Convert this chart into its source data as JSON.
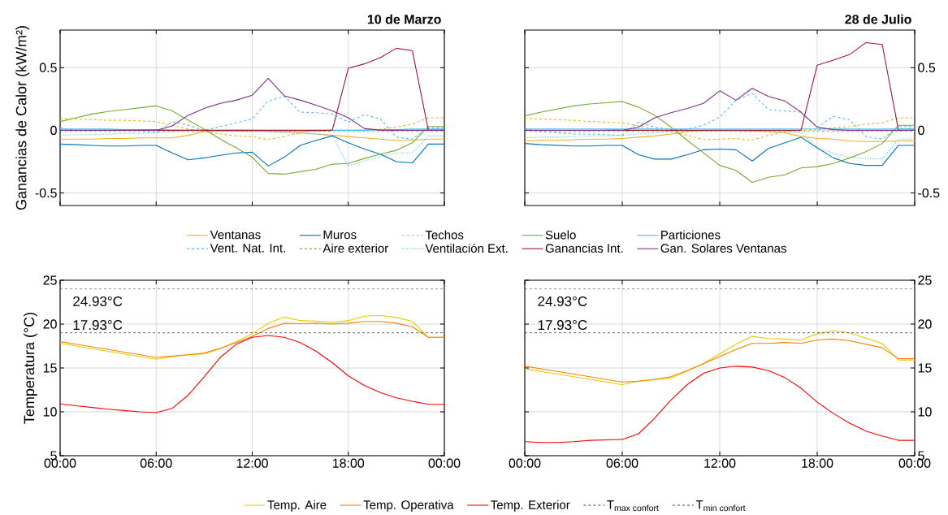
{
  "chart_data": [
    {
      "type": "line",
      "title": "10 de Marzo",
      "ylabel": "Ganancias de Calor (kW/m²)",
      "x": [
        0,
        1,
        2,
        3,
        4,
        5,
        6,
        7,
        8,
        9,
        10,
        11,
        12,
        13,
        14,
        15,
        16,
        17,
        18,
        19,
        20,
        21,
        22,
        23,
        24
      ],
      "xlim": [
        0,
        24
      ],
      "ylim": [
        -0.6,
        0.8
      ],
      "xticks": [
        0,
        6,
        12,
        18,
        24
      ],
      "yticks": [
        -0.5,
        0,
        0.5
      ],
      "grid": true,
      "legend": "bottom",
      "tick_labels": "y",
      "series": [
        {
          "name": "Ventanas",
          "color": "#edb120",
          "line_style": "solid",
          "values": [
            -0.07,
            -0.07,
            -0.07,
            -0.065,
            -0.065,
            -0.06,
            -0.06,
            -0.06,
            -0.04,
            -0.01,
            0,
            0,
            0,
            -0.01,
            -0.01,
            -0.02,
            -0.03,
            -0.04,
            -0.05,
            -0.06,
            -0.07,
            -0.08,
            -0.08,
            -0.07,
            -0.07
          ]
        },
        {
          "name": "Muros",
          "color": "#0072bd",
          "line_style": "solid",
          "values": [
            -0.11,
            -0.115,
            -0.12,
            -0.125,
            -0.125,
            -0.12,
            -0.12,
            -0.18,
            -0.235,
            -0.22,
            -0.2,
            -0.18,
            -0.175,
            -0.285,
            -0.215,
            -0.12,
            -0.08,
            -0.045,
            -0.1,
            -0.15,
            -0.19,
            -0.25,
            -0.26,
            -0.11,
            -0.11
          ]
        },
        {
          "name": "Techos",
          "color": "#edb120",
          "line_style": "dashed",
          "values": [
            0.095,
            0.09,
            0.085,
            0.08,
            0.08,
            0.075,
            0.07,
            0.04,
            0.01,
            -0.01,
            -0.03,
            -0.045,
            -0.05,
            -0.075,
            -0.05,
            -0.02,
            0,
            0,
            0,
            0.005,
            0.01,
            0.025,
            0.05,
            0.1,
            0.1
          ]
        },
        {
          "name": "Suelo",
          "color": "#77ac30",
          "line_style": "solid",
          "values": [
            0.07,
            0.1,
            0.13,
            0.15,
            0.165,
            0.18,
            0.195,
            0.155,
            0.08,
            0.01,
            -0.07,
            -0.14,
            -0.215,
            -0.345,
            -0.35,
            -0.33,
            -0.31,
            -0.27,
            -0.265,
            -0.225,
            -0.19,
            -0.16,
            -0.1,
            0.03,
            0.03
          ]
        },
        {
          "name": "Particiones",
          "color": "#4dbeee",
          "line_style": "solid",
          "values": [
            0.01,
            0.01,
            0.01,
            0.01,
            0.005,
            0.005,
            0.005,
            0,
            0,
            0,
            -0.005,
            -0.005,
            -0.01,
            -0.01,
            -0.01,
            -0.01,
            -0.005,
            0,
            0,
            0,
            0.005,
            0.005,
            0.01,
            0.01,
            0.01
          ]
        },
        {
          "name": "Vent. Nat. Int.",
          "color": "#4dbeee",
          "line_style": "dashed",
          "values": [
            0.02,
            0,
            0,
            0,
            0,
            0,
            -0.02,
            0.07,
            0.04,
            0,
            0.03,
            0.06,
            0.09,
            0.235,
            0.27,
            0.145,
            0.14,
            0.13,
            0.065,
            0.125,
            0.09,
            -0.055,
            -0.07,
            0.02,
            0.02
          ]
        },
        {
          "name": "Aire exterior",
          "color": "#77ac30",
          "line_style": "dashed",
          "values": [
            -0.01,
            -0.01,
            -0.01,
            -0.01,
            -0.01,
            -0.01,
            -0.01,
            -0.01,
            -0.01,
            -0.01,
            -0.005,
            -0.005,
            -0.005,
            -0.005,
            -0.005,
            -0.005,
            -0.005,
            -0.01,
            -0.01,
            -0.01,
            -0.01,
            -0.01,
            -0.01,
            -0.01,
            -0.01
          ]
        },
        {
          "name": "Ventilación Ext.",
          "color": "#4dbeee",
          "line_style": "dotted",
          "values": [
            -0.04,
            -0.035,
            -0.035,
            -0.03,
            -0.025,
            -0.025,
            -0.02,
            -0.01,
            -0.005,
            0,
            0,
            0,
            0,
            -0.01,
            -0.02,
            -0.03,
            -0.03,
            -0.04,
            -0.285,
            -0.245,
            -0.21,
            -0.18,
            -0.18,
            -0.045,
            -0.045
          ]
        },
        {
          "name": "Ganancias Int.",
          "color": "#a2142f",
          "line_style": "solid",
          "values": [
            null,
            null,
            null,
            null,
            null,
            0,
            0,
            0,
            0,
            0,
            0,
            0,
            0,
            0,
            0,
            0,
            0,
            0,
            0.495,
            0.53,
            0.58,
            0.655,
            0.635,
            0,
            0
          ]
        },
        {
          "name": "Gan. Solares Ventanas",
          "color": "#7e2f8e",
          "line_style": "solid",
          "values": [
            0,
            0,
            0,
            0,
            0,
            0,
            0,
            0.035,
            0.12,
            0.175,
            0.215,
            0.24,
            0.28,
            0.415,
            0.275,
            0.24,
            0.2,
            0.155,
            0.1,
            0.015,
            0,
            0,
            0,
            0,
            0
          ]
        }
      ]
    },
    {
      "type": "line",
      "title": "28 de Julio",
      "x": [
        0,
        1,
        2,
        3,
        4,
        5,
        6,
        7,
        8,
        9,
        10,
        11,
        12,
        13,
        14,
        15,
        16,
        17,
        18,
        19,
        20,
        21,
        22,
        23,
        24
      ],
      "xlim": [
        0,
        24
      ],
      "ylim": [
        -0.6,
        0.8
      ],
      "xticks": [
        0,
        6,
        12,
        18,
        24
      ],
      "yticks": [
        -0.5,
        0,
        0.5
      ],
      "grid": true,
      "tick_labels": "y",
      "series": [
        {
          "color": "#edb120",
          "line_style": "solid",
          "values": [
            -0.085,
            -0.08,
            -0.08,
            -0.075,
            -0.07,
            -0.07,
            -0.065,
            -0.055,
            -0.045,
            -0.03,
            -0.01,
            0,
            0,
            0,
            -0.005,
            -0.01,
            -0.02,
            -0.05,
            -0.065,
            -0.07,
            -0.085,
            -0.09,
            -0.09,
            -0.085,
            -0.085
          ]
        },
        {
          "color": "#0072bd",
          "line_style": "solid",
          "values": [
            -0.105,
            -0.115,
            -0.12,
            -0.125,
            -0.125,
            -0.12,
            -0.12,
            -0.195,
            -0.23,
            -0.23,
            -0.195,
            -0.155,
            -0.15,
            -0.155,
            -0.245,
            -0.145,
            -0.1,
            -0.055,
            -0.14,
            -0.22,
            -0.265,
            -0.28,
            -0.28,
            -0.12,
            -0.12
          ]
        },
        {
          "color": "#edb120",
          "line_style": "dashed",
          "values": [
            0.095,
            0.09,
            0.085,
            0.08,
            0.07,
            0.065,
            0.06,
            0.035,
            0.01,
            -0.01,
            -0.04,
            -0.075,
            -0.07,
            -0.065,
            -0.08,
            -0.04,
            -0.01,
            0,
            0.005,
            0.02,
            0.03,
            0.05,
            0.06,
            0.1,
            0.1
          ]
        },
        {
          "color": "#77ac30",
          "line_style": "solid",
          "values": [
            0.115,
            0.145,
            0.17,
            0.195,
            0.21,
            0.22,
            0.23,
            0.185,
            0.12,
            0.025,
            -0.08,
            -0.18,
            -0.28,
            -0.32,
            -0.415,
            -0.375,
            -0.355,
            -0.3,
            -0.29,
            -0.265,
            -0.22,
            -0.17,
            -0.105,
            0.04,
            0.04
          ]
        },
        {
          "color": "#4dbeee",
          "line_style": "solid",
          "values": [
            0.01,
            0.01,
            0.01,
            0.01,
            0.01,
            0.01,
            0.01,
            0.01,
            0.01,
            0.01,
            0.01,
            0.01,
            0.01,
            0.01,
            0.01,
            0.01,
            0.01,
            0.01,
            0.01,
            0.01,
            0.01,
            0.01,
            0.01,
            0.01,
            0.015
          ]
        },
        {
          "color": "#4dbeee",
          "line_style": "dashed",
          "values": [
            0.01,
            -0.01,
            -0.02,
            -0.03,
            -0.03,
            -0.035,
            -0.04,
            0.065,
            0.025,
            0.005,
            0.01,
            0.04,
            0.105,
            0.24,
            0.295,
            0.165,
            0.155,
            0.145,
            0.025,
            0.11,
            0.085,
            -0.05,
            -0.07,
            0.03,
            0.03
          ]
        },
        {
          "color": "#77ac30",
          "line_style": "dashed",
          "values": [
            -0.01,
            -0.01,
            -0.01,
            -0.01,
            -0.01,
            -0.01,
            -0.01,
            -0.01,
            -0.01,
            -0.01,
            -0.01,
            -0.01,
            -0.01,
            -0.01,
            -0.01,
            -0.01,
            -0.01,
            -0.01,
            -0.01,
            -0.01,
            -0.01,
            -0.01,
            -0.01,
            -0.01,
            -0.01
          ]
        },
        {
          "color": "#4dbeee",
          "line_style": "dotted",
          "values": [
            -0.06,
            -0.055,
            -0.055,
            -0.05,
            -0.045,
            -0.045,
            -0.04,
            -0.03,
            -0.02,
            -0.01,
            -0.005,
            -0.005,
            -0.005,
            -0.005,
            -0.01,
            -0.01,
            -0.015,
            -0.02,
            -0.135,
            -0.185,
            -0.215,
            -0.225,
            -0.23,
            -0.07,
            -0.07
          ]
        },
        {
          "color": "#a2142f",
          "line_style": "solid",
          "values": [
            null,
            null,
            null,
            null,
            null,
            0,
            0,
            0,
            0,
            0,
            0,
            0,
            0,
            0,
            0,
            0,
            0,
            0,
            0.52,
            0.56,
            0.605,
            0.7,
            0.685,
            0,
            0
          ]
        },
        {
          "color": "#7e2f8e",
          "line_style": "solid",
          "values": [
            0,
            0,
            0,
            0,
            0,
            0,
            0,
            0.025,
            0.1,
            0.14,
            0.175,
            0.215,
            0.315,
            0.24,
            0.335,
            0.27,
            0.235,
            0.145,
            0.025,
            0.005,
            0,
            0,
            0,
            0,
            0
          ]
        }
      ]
    },
    {
      "type": "line",
      "ylabel": "Temperatura (°C)",
      "x": [
        0,
        1,
        2,
        3,
        4,
        5,
        6,
        7,
        8,
        9,
        10,
        11,
        12,
        13,
        14,
        15,
        16,
        17,
        18,
        19,
        20,
        21,
        22,
        23,
        24
      ],
      "xlim": [
        0,
        24
      ],
      "ylim": [
        5,
        25
      ],
      "xticks": [
        {
          "value": 0,
          "label": "00:00"
        },
        {
          "value": 6,
          "label": "06:00"
        },
        {
          "value": 12,
          "label": "12:00"
        },
        {
          "value": 18,
          "label": "18:00"
        },
        {
          "value": 24,
          "label": "00:00"
        }
      ],
      "yticks": [
        5,
        10,
        15,
        20,
        25
      ],
      "grid": true,
      "legend": "bottom",
      "annotations": [
        "24.93°C",
        "17.93°C"
      ],
      "ref_lines": [
        {
          "axis": "y",
          "value": 24,
          "label": "\\text{T}_{\\text{max confort}}",
          "color": "#404040",
          "line_style": "dashed"
        },
        {
          "axis": "y",
          "value": 19,
          "label": "\\text{T}_{\\text{min confort}}",
          "color": "#404040",
          "line_style": "dashed"
        }
      ],
      "series": [
        {
          "name": "Temp.  Aire",
          "color": "#e6cc00",
          "line_style": "solid",
          "values": [
            17.8,
            17.5,
            17.2,
            16.9,
            16.6,
            16.3,
            16.0,
            16.3,
            16.5,
            16.6,
            17.2,
            18.0,
            18.9,
            20.1,
            20.8,
            20.4,
            20.35,
            20.2,
            20.4,
            20.9,
            21.0,
            20.75,
            20.3,
            18.5,
            18.5
          ]
        },
        {
          "name": "Temp.  Operativa",
          "color": "#ff8000",
          "line_style": "solid",
          "values": [
            18.0,
            17.7,
            17.4,
            17.1,
            16.8,
            16.5,
            16.2,
            16.35,
            16.5,
            16.7,
            17.25,
            17.9,
            18.6,
            19.5,
            20.1,
            20.05,
            20.1,
            20.0,
            20.1,
            20.3,
            20.3,
            20.1,
            19.7,
            18.5,
            18.5
          ]
        },
        {
          "name": "Temp.  Exterior",
          "color": "#ff0000",
          "line_style": "solid",
          "values": [
            10.9,
            10.7,
            10.5,
            10.3,
            10.15,
            10.0,
            9.9,
            10.4,
            11.9,
            14.0,
            16.2,
            17.7,
            18.5,
            18.7,
            18.5,
            17.9,
            16.9,
            15.6,
            14.1,
            13.0,
            12.2,
            11.6,
            11.2,
            10.85,
            10.85
          ]
        }
      ]
    },
    {
      "type": "line",
      "x": [
        0,
        1,
        2,
        3,
        4,
        5,
        6,
        7,
        8,
        9,
        10,
        11,
        12,
        13,
        14,
        15,
        16,
        17,
        18,
        19,
        20,
        21,
        22,
        23,
        24
      ],
      "xlim": [
        0,
        24
      ],
      "ylim": [
        5,
        25
      ],
      "xticks": [
        {
          "value": 0,
          "label": "00:00"
        },
        {
          "value": 6,
          "label": "06:00"
        },
        {
          "value": 12,
          "label": "12:00"
        },
        {
          "value": 18,
          "label": "18:00"
        },
        {
          "value": 24,
          "label": "00:00"
        }
      ],
      "yticks": [
        5,
        10,
        15,
        20,
        25
      ],
      "grid": true,
      "annotations": [
        "24.93°C",
        "17.93°C"
      ],
      "ref_lines": [
        {
          "axis": "y",
          "value": 24,
          "color": "#404040",
          "line_style": "dashed"
        },
        {
          "axis": "y",
          "value": 19,
          "color": "#404040",
          "line_style": "dashed"
        }
      ],
      "series": [
        {
          "color": "#e6cc00",
          "line_style": "solid",
          "values": [
            14.9,
            14.6,
            14.3,
            14.0,
            13.7,
            13.4,
            13.1,
            13.5,
            13.65,
            13.85,
            14.65,
            15.5,
            16.6,
            17.7,
            18.6,
            18.35,
            18.3,
            18.2,
            18.9,
            19.25,
            19.0,
            18.4,
            17.8,
            15.9,
            15.9
          ]
        },
        {
          "color": "#ff8000",
          "line_style": "solid",
          "values": [
            15.2,
            14.9,
            14.6,
            14.3,
            14.0,
            13.7,
            13.4,
            13.5,
            13.7,
            14.0,
            14.7,
            15.5,
            16.3,
            17.1,
            17.8,
            17.8,
            17.9,
            17.8,
            18.2,
            18.3,
            18.1,
            17.7,
            17.3,
            16.05,
            16.05
          ]
        },
        {
          "color": "#ff0000",
          "line_style": "solid",
          "values": [
            6.6,
            6.5,
            6.5,
            6.6,
            6.75,
            6.8,
            6.85,
            7.5,
            9.3,
            11.35,
            13.1,
            14.4,
            15.0,
            15.2,
            15.1,
            14.7,
            13.9,
            12.7,
            11.1,
            9.8,
            8.7,
            7.8,
            7.25,
            6.75,
            6.75
          ]
        }
      ]
    }
  ]
}
